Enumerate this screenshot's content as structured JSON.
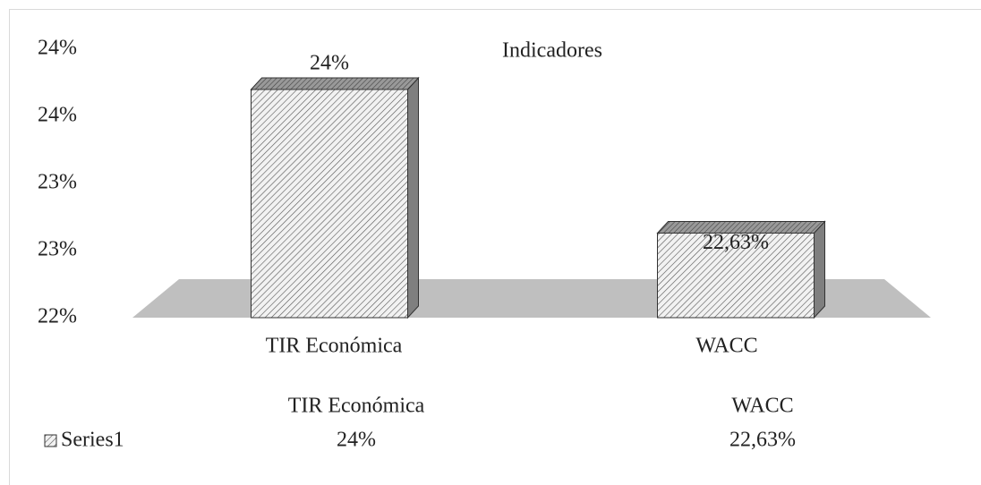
{
  "chart_data": {
    "type": "bar3d",
    "title": "Indicadores",
    "categories": [
      "TIR Económica",
      "WACC"
    ],
    "series": [
      {
        "name": "Series1",
        "color": "#d9d9d9",
        "values": [
          23.7,
          22.63
        ],
        "value_labels": [
          "24%",
          "22,63%"
        ]
      }
    ],
    "ylim": [
      22,
      24
    ],
    "yticks": [
      {
        "value": 22,
        "label": "22%"
      },
      {
        "value": 22.5,
        "label": "23%"
      },
      {
        "value": 23,
        "label": "23%"
      },
      {
        "value": 23.5,
        "label": "24%"
      },
      {
        "value": 24,
        "label": "24%"
      }
    ],
    "data_table": true
  }
}
